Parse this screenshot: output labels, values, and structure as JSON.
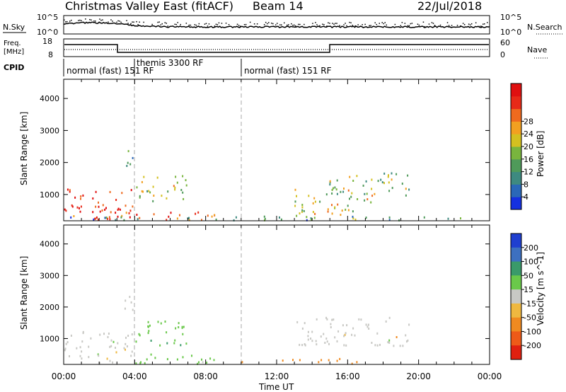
{
  "header": {
    "station": "Christmas Valley East (fitACF)",
    "beam": "Beam 14",
    "date": "22/Jul/2018"
  },
  "top_panels": {
    "nsky": {
      "left_label": "N.Sky",
      "left_ticks": [
        "10^5",
        "10^0"
      ],
      "right_label": "N.Search",
      "right_ticks": [
        "10^5",
        "10^0"
      ]
    },
    "freq": {
      "left_label_1": "Freq.",
      "left_label_2": "[MHz]",
      "left_ticks": [
        "18",
        "8"
      ],
      "right_label": "Nave",
      "right_ticks": [
        "60",
        "0"
      ]
    },
    "cpid": {
      "label": "CPID",
      "modes": [
        "normal (fast) 151 RF",
        "themis 3300 RF",
        "normal (fast) 151 RF"
      ]
    }
  },
  "x_axis": {
    "label": "Time UT",
    "ticks": [
      "00:00",
      "04:00",
      "08:00",
      "12:00",
      "16:00",
      "20:00",
      "00:00"
    ]
  },
  "chart_data": [
    {
      "type": "heatmap",
      "name": "power",
      "ylabel": "Slant Range [km]",
      "xlabel": "Time UT",
      "xlim": [
        0,
        24
      ],
      "ylim": [
        180,
        4600
      ],
      "yticks": [
        1000,
        2000,
        3000,
        4000
      ],
      "colorbar": {
        "label": "Power [dB]",
        "ticks": [
          "4",
          "8",
          "12",
          "16",
          "20",
          "24",
          "28"
        ],
        "colors": [
          "#1530e0",
          "#2a68b8",
          "#3e8a80",
          "#4f9a5a",
          "#79b53e",
          "#d4c020",
          "#f2a020",
          "#ef6a1e",
          "#e82a18",
          "#e01010"
        ]
      },
      "regions": [
        {
          "t": [
            0.0,
            3.9
          ],
          "r": [
            180,
            1250
          ],
          "level": 28
        },
        {
          "t": [
            2.0,
            4.3
          ],
          "r": [
            180,
            600
          ],
          "level": 30
        },
        {
          "t": [
            4.0,
            8.5
          ],
          "r": [
            180,
            500
          ],
          "level": 26
        },
        {
          "t": [
            4.0,
            7.0
          ],
          "r": [
            800,
            1650
          ],
          "level": 16
        },
        {
          "t": [
            3.3,
            4.2
          ],
          "r": [
            1900,
            2400
          ],
          "level": 10
        },
        {
          "t": [
            13.0,
            17.5
          ],
          "r": [
            180,
            1200
          ],
          "level": 18
        },
        {
          "t": [
            14.5,
            19.5
          ],
          "r": [
            1000,
            1700
          ],
          "level": 14
        },
        {
          "t": [
            0.0,
            24.0
          ],
          "r": [
            180,
            350
          ],
          "level": 8
        }
      ]
    },
    {
      "type": "heatmap",
      "name": "velocity",
      "ylabel": "Slant Range [km]",
      "xlabel": "Time UT",
      "xlim": [
        0,
        24
      ],
      "ylim": [
        180,
        4600
      ],
      "yticks": [
        1000,
        2000,
        3000,
        4000
      ],
      "colorbar": {
        "label": "Velocity [m s^-1]",
        "ticks": [
          "200",
          "100",
          "50",
          "15",
          "-15",
          "-50",
          "-100",
          "-200"
        ],
        "colors": [
          "#1f3fd0",
          "#3d70c0",
          "#3a9a6a",
          "#6ac84a",
          "#c8c8c4",
          "#efb840",
          "#f08a20",
          "#ee5a18",
          "#e02010"
        ]
      },
      "regions": [
        {
          "t": [
            0.0,
            3.9
          ],
          "r": [
            250,
            1250
          ],
          "level": 0
        },
        {
          "t": [
            4.0,
            7.0
          ],
          "r": [
            800,
            1600
          ],
          "level": 40
        },
        {
          "t": [
            4.0,
            8.5
          ],
          "r": [
            180,
            550
          ],
          "level": 30
        },
        {
          "t": [
            10.0,
            17.0
          ],
          "r": [
            180,
            400
          ],
          "level": -60
        },
        {
          "t": [
            13.0,
            19.5
          ],
          "r": [
            800,
            1700
          ],
          "level": 0
        },
        {
          "t": [
            3.3,
            4.2
          ],
          "r": [
            1900,
            2400
          ],
          "level": 0
        }
      ]
    }
  ]
}
